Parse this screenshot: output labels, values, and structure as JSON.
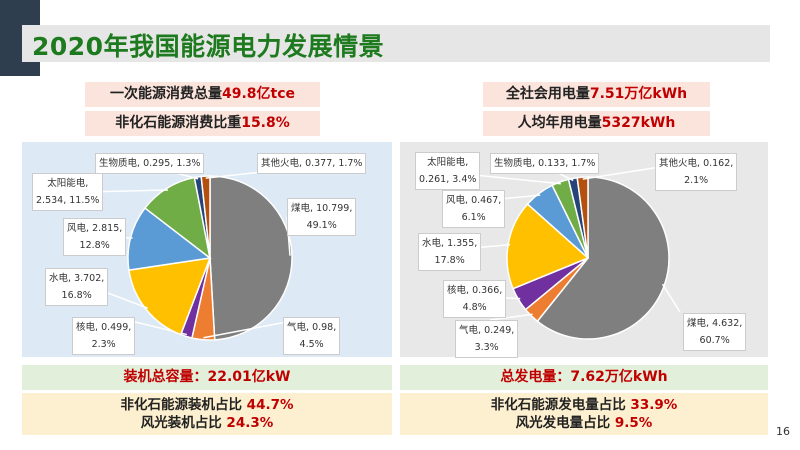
{
  "title": "2020年我国能源电力发展情景",
  "left_stats": [
    {
      "label": "一次能源消费总量",
      "value": "49.8亿tce"
    },
    {
      "label": "非化石能源消费比重",
      "value": "15.8%"
    }
  ],
  "right_stats": [
    {
      "label": "全社会用电量",
      "value": "7.51万亿kWh"
    },
    {
      "label": "人均年用电量",
      "value": "5327kWh"
    }
  ],
  "left_summary": {
    "total": "装机总容量：22.01亿kW",
    "line1_label": "非化石能源装机占比 ",
    "line1_value": "44.7%",
    "line2_label": "风光装机占比 ",
    "line2_value": "24.3%"
  },
  "right_summary": {
    "total": "总发电量：7.62万亿kWh",
    "line1_label": "非化石能源发电量占比 ",
    "line1_value": "33.9%",
    "line2_label": "风光发电量占比 ",
    "line2_value": "9.5%"
  },
  "page_number": "16",
  "chart_data": [
    {
      "type": "pie",
      "title": "装机容量",
      "colors": [
        "#7f7f7f",
        "#ed7d31",
        "#7030a0",
        "#ffc000",
        "#5b9bd5",
        "#70ad47",
        "#264478",
        "#b4500f"
      ],
      "slices": [
        {
          "name": "煤电",
          "value": 10.799,
          "pct": "49.1%"
        },
        {
          "name": "气电",
          "value": 0.98,
          "pct": "4.5%"
        },
        {
          "name": "核电",
          "value": 0.499,
          "pct": "2.3%"
        },
        {
          "name": "水电",
          "value": 3.702,
          "pct": "16.8%"
        },
        {
          "name": "风电",
          "value": 2.815,
          "pct": "12.8%"
        },
        {
          "name": "太阳能电",
          "value": 2.534,
          "pct": "11.5%"
        },
        {
          "name": "生物质电",
          "value": 0.295,
          "pct": "1.3%"
        },
        {
          "name": "其他火电",
          "value": 0.377,
          "pct": "1.7%"
        }
      ]
    },
    {
      "type": "pie",
      "title": "发电量",
      "colors": [
        "#7f7f7f",
        "#ed7d31",
        "#7030a0",
        "#ffc000",
        "#5b9bd5",
        "#70ad47",
        "#264478",
        "#b4500f"
      ],
      "slices": [
        {
          "name": "煤电",
          "value": 4.632,
          "pct": "60.7%"
        },
        {
          "name": "气电",
          "value": 0.249,
          "pct": "3.3%"
        },
        {
          "name": "核电",
          "value": 0.366,
          "pct": "4.8%"
        },
        {
          "name": "水电",
          "value": 1.355,
          "pct": "17.8%"
        },
        {
          "name": "风电",
          "value": 0.467,
          "pct": "6.1%"
        },
        {
          "name": "太阳能电",
          "value": 0.261,
          "pct": "3.4%"
        },
        {
          "name": "生物质电",
          "value": 0.133,
          "pct": "1.7%"
        },
        {
          "name": "其他火电",
          "value": 0.162,
          "pct": "2.1%"
        }
      ]
    }
  ]
}
